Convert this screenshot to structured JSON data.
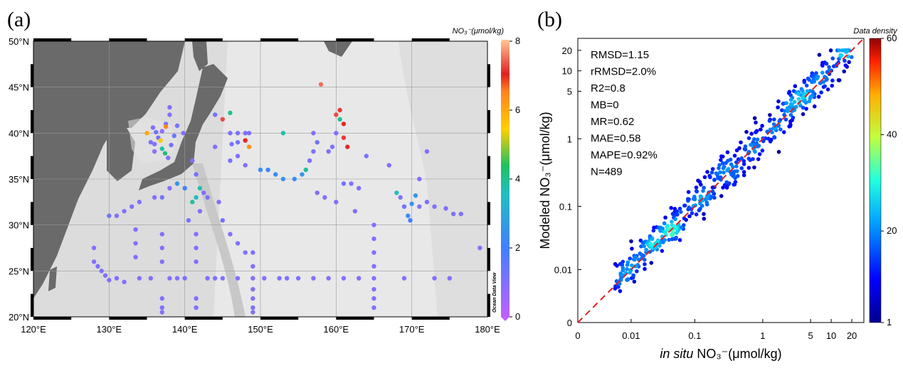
{
  "chart_data": [
    {
      "panel": "(a)",
      "type": "scatter",
      "xlabel": "",
      "ylabel": "",
      "xlim": [
        120,
        180
      ],
      "ylim": [
        20,
        50
      ],
      "x_ticks": [
        120,
        130,
        140,
        150,
        160,
        170,
        180
      ],
      "x_tick_labels": [
        "120°E",
        "130°E",
        "140°E",
        "150°E",
        "160°E",
        "170°E",
        "180°E"
      ],
      "y_ticks": [
        20,
        25,
        30,
        35,
        40,
        45,
        50
      ],
      "y_tick_labels": [
        "20°N",
        "25°N",
        "30°N",
        "35°N",
        "40°N",
        "45°N",
        "50°N"
      ],
      "grid": true,
      "colorbar": {
        "title": "NO₃⁻(μmol/kg)",
        "min": 0,
        "max": 8,
        "ticks": [
          0,
          2,
          4,
          6,
          8
        ],
        "tick_labels": [
          "0",
          "2",
          "4",
          "6",
          "8"
        ]
      },
      "watermark": "Ocean Data View",
      "colors": {
        "low": "#c060ff",
        "mid_low": "#4080ff",
        "mid": "#20c060",
        "mid_high": "#ffc000",
        "high": "#e02020",
        "top": "#ffc090"
      },
      "points": [
        {
          "lon": 136.0,
          "lat": 38.8,
          "v": 1.0
        },
        {
          "lon": 136.5,
          "lat": 39.5,
          "v": 1.2
        },
        {
          "lon": 137.0,
          "lat": 40.2,
          "v": 0.8
        },
        {
          "lon": 137.5,
          "lat": 41.0,
          "v": 1.1
        },
        {
          "lon": 138.0,
          "lat": 42.0,
          "v": 0.9
        },
        {
          "lon": 138.0,
          "lat": 42.8,
          "v": 1.0
        },
        {
          "lon": 137.5,
          "lat": 40.7,
          "v": 6.5
        },
        {
          "lon": 136.2,
          "lat": 40.1,
          "v": 1.3
        },
        {
          "lon": 135.0,
          "lat": 40.0,
          "v": 6.0
        },
        {
          "lon": 135.5,
          "lat": 39.0,
          "v": 1.0
        },
        {
          "lon": 136.0,
          "lat": 38.0,
          "v": 0.7
        },
        {
          "lon": 137.0,
          "lat": 38.3,
          "v": 3.8
        },
        {
          "lon": 137.4,
          "lat": 37.8,
          "v": 4.2
        },
        {
          "lon": 137.8,
          "lat": 37.3,
          "v": 1.0
        },
        {
          "lon": 138.6,
          "lat": 39.7,
          "v": 1.3
        },
        {
          "lon": 139.0,
          "lat": 40.8,
          "v": 1.1
        },
        {
          "lon": 139.8,
          "lat": 40.0,
          "v": 0.9
        },
        {
          "lon": 136.8,
          "lat": 39.2,
          "v": 5.5
        },
        {
          "lon": 138.2,
          "lat": 38.7,
          "v": 1.2
        },
        {
          "lon": 135.8,
          "lat": 40.6,
          "v": 1.0
        },
        {
          "lon": 144.0,
          "lat": 42.0,
          "v": 1.2
        },
        {
          "lon": 146.0,
          "lat": 42.2,
          "v": 4.0
        },
        {
          "lon": 145.0,
          "lat": 41.5,
          "v": 7.3
        },
        {
          "lon": 146.0,
          "lat": 40.0,
          "v": 1.0
        },
        {
          "lon": 147.0,
          "lat": 40.0,
          "v": 1.1
        },
        {
          "lon": 148.0,
          "lat": 40.0,
          "v": 1.0
        },
        {
          "lon": 148.5,
          "lat": 40.0,
          "v": 1.0
        },
        {
          "lon": 148.0,
          "lat": 39.2,
          "v": 7.0
        },
        {
          "lon": 148.5,
          "lat": 38.5,
          "v": 6.3
        },
        {
          "lon": 147.0,
          "lat": 39.0,
          "v": 1.2
        },
        {
          "lon": 147.0,
          "lat": 37.5,
          "v": 1.0
        },
        {
          "lon": 148.0,
          "lat": 36.5,
          "v": 1.0
        },
        {
          "lon": 146.0,
          "lat": 37.0,
          "v": 1.1
        },
        {
          "lon": 144.0,
          "lat": 38.5,
          "v": 1.0
        },
        {
          "lon": 146.2,
          "lat": 38.8,
          "v": 1.1
        },
        {
          "lon": 153.0,
          "lat": 40.0,
          "v": 3.8
        },
        {
          "lon": 157.0,
          "lat": 40.0,
          "v": 1.0
        },
        {
          "lon": 157.5,
          "lat": 39.0,
          "v": 1.2
        },
        {
          "lon": 157.0,
          "lat": 38.0,
          "v": 1.1
        },
        {
          "lon": 156.5,
          "lat": 37.0,
          "v": 1.0
        },
        {
          "lon": 156.0,
          "lat": 36.0,
          "v": 3.9
        },
        {
          "lon": 155.5,
          "lat": 35.5,
          "v": 2.5
        },
        {
          "lon": 154.5,
          "lat": 35.0,
          "v": 2.3
        },
        {
          "lon": 153.0,
          "lat": 35.0,
          "v": 2.5
        },
        {
          "lon": 152.0,
          "lat": 35.5,
          "v": 2.3
        },
        {
          "lon": 151.0,
          "lat": 36.0,
          "v": 2.2
        },
        {
          "lon": 150.0,
          "lat": 36.0,
          "v": 2.4
        },
        {
          "lon": 160.0,
          "lat": 40.0,
          "v": 1.0
        },
        {
          "lon": 160.5,
          "lat": 41.5,
          "v": 4.0
        },
        {
          "lon": 160.0,
          "lat": 42.0,
          "v": 7.3
        },
        {
          "lon": 160.5,
          "lat": 42.5,
          "v": 7.2
        },
        {
          "lon": 161.0,
          "lat": 41.0,
          "v": 7.0
        },
        {
          "lon": 161.0,
          "lat": 39.5,
          "v": 7.2
        },
        {
          "lon": 161.5,
          "lat": 38.5,
          "v": 7.1
        },
        {
          "lon": 159.5,
          "lat": 38.5,
          "v": 1.0
        },
        {
          "lon": 158.0,
          "lat": 45.3,
          "v": 7.5
        },
        {
          "lon": 159.0,
          "lat": 38.0,
          "v": 1.0
        },
        {
          "lon": 164.0,
          "lat": 37.5,
          "v": 1.1
        },
        {
          "lon": 167.0,
          "lat": 36.5,
          "v": 1.0
        },
        {
          "lon": 172.0,
          "lat": 38.0,
          "v": 1.0
        },
        {
          "lon": 171.0,
          "lat": 35.0,
          "v": 1.0
        },
        {
          "lon": 161.0,
          "lat": 34.5,
          "v": 1.2
        },
        {
          "lon": 162.0,
          "lat": 34.5,
          "v": 1.1
        },
        {
          "lon": 163.0,
          "lat": 34.0,
          "v": 1.0
        },
        {
          "lon": 141.0,
          "lat": 37.0,
          "v": 1.0
        },
        {
          "lon": 141.5,
          "lat": 35.5,
          "v": 1.2
        },
        {
          "lon": 142.0,
          "lat": 34.0,
          "v": 3.8
        },
        {
          "lon": 141.5,
          "lat": 33.0,
          "v": 3.5
        },
        {
          "lon": 142.5,
          "lat": 33.5,
          "v": 1.0
        },
        {
          "lon": 143.0,
          "lat": 33.0,
          "v": 1.1
        },
        {
          "lon": 144.5,
          "lat": 32.5,
          "v": 1.0
        },
        {
          "lon": 145.0,
          "lat": 30.5,
          "v": 1.2
        },
        {
          "lon": 146.0,
          "lat": 29.0,
          "v": 1.0
        },
        {
          "lon": 147.0,
          "lat": 28.0,
          "v": 1.0
        },
        {
          "lon": 148.0,
          "lat": 27.0,
          "v": 1.0
        },
        {
          "lon": 142.0,
          "lat": 31.5,
          "v": 1.0
        },
        {
          "lon": 140.5,
          "lat": 30.5,
          "v": 1.1
        },
        {
          "lon": 138.0,
          "lat": 34.0,
          "v": 1.0
        },
        {
          "lon": 137.0,
          "lat": 33.0,
          "v": 1.2
        },
        {
          "lon": 136.0,
          "lat": 33.0,
          "v": 1.0
        },
        {
          "lon": 134.0,
          "lat": 32.5,
          "v": 1.0
        },
        {
          "lon": 133.0,
          "lat": 32.0,
          "v": 1.1
        },
        {
          "lon": 132.0,
          "lat": 31.5,
          "v": 1.0
        },
        {
          "lon": 131.0,
          "lat": 31.0,
          "v": 1.0
        },
        {
          "lon": 130.0,
          "lat": 31.0,
          "v": 1.2
        },
        {
          "lon": 139.0,
          "lat": 34.5,
          "v": 2.5
        },
        {
          "lon": 140.0,
          "lat": 34.0,
          "v": 2.0
        },
        {
          "lon": 141.0,
          "lat": 32.5,
          "v": 3.9
        },
        {
          "lon": 137.0,
          "lat": 29.0,
          "v": 1.0
        },
        {
          "lon": 137.0,
          "lat": 27.5,
          "v": 1.0
        },
        {
          "lon": 137.0,
          "lat": 26.0,
          "v": 1.0
        },
        {
          "lon": 137.0,
          "lat": 22.0,
          "v": 1.0
        },
        {
          "lon": 137.0,
          "lat": 21.0,
          "v": 1.0
        },
        {
          "lon": 137.0,
          "lat": 20.5,
          "v": 1.0
        },
        {
          "lon": 133.5,
          "lat": 29.5,
          "v": 1.0
        },
        {
          "lon": 133.5,
          "lat": 28.0,
          "v": 1.0
        },
        {
          "lon": 133.5,
          "lat": 26.5,
          "v": 1.0
        },
        {
          "lon": 141.5,
          "lat": 29.0,
          "v": 1.0
        },
        {
          "lon": 141.5,
          "lat": 27.5,
          "v": 1.0
        },
        {
          "lon": 141.5,
          "lat": 26.0,
          "v": 1.0
        },
        {
          "lon": 141.5,
          "lat": 22.0,
          "v": 1.0
        },
        {
          "lon": 141.5,
          "lat": 21.0,
          "v": 1.0
        },
        {
          "lon": 128.0,
          "lat": 26.0,
          "v": 1.0
        },
        {
          "lon": 128.5,
          "lat": 25.5,
          "v": 1.0
        },
        {
          "lon": 129.0,
          "lat": 25.0,
          "v": 1.0
        },
        {
          "lon": 129.5,
          "lat": 24.5,
          "v": 1.0
        },
        {
          "lon": 130.0,
          "lat": 24.0,
          "v": 1.0
        },
        {
          "lon": 128.0,
          "lat": 27.5,
          "v": 1.0
        },
        {
          "lon": 131.0,
          "lat": 24.2,
          "v": 1.0
        },
        {
          "lon": 132.0,
          "lat": 23.8,
          "v": 1.0
        },
        {
          "lon": 134.0,
          "lat": 24.2,
          "v": 1.0
        },
        {
          "lon": 135.5,
          "lat": 24.2,
          "v": 1.0
        },
        {
          "lon": 138.0,
          "lat": 24.2,
          "v": 1.0
        },
        {
          "lon": 139.0,
          "lat": 24.2,
          "v": 1.0
        },
        {
          "lon": 140.0,
          "lat": 24.2,
          "v": 1.0
        },
        {
          "lon": 143.0,
          "lat": 24.2,
          "v": 1.0
        },
        {
          "lon": 144.0,
          "lat": 24.2,
          "v": 1.0
        },
        {
          "lon": 145.0,
          "lat": 24.2,
          "v": 1.0
        },
        {
          "lon": 147.0,
          "lat": 24.2,
          "v": 1.0
        },
        {
          "lon": 149.0,
          "lat": 24.2,
          "v": 1.0
        },
        {
          "lon": 150.5,
          "lat": 24.2,
          "v": 1.0
        },
        {
          "lon": 152.5,
          "lat": 24.2,
          "v": 1.0
        },
        {
          "lon": 153.5,
          "lat": 24.2,
          "v": 1.0
        },
        {
          "lon": 155.0,
          "lat": 24.2,
          "v": 1.0
        },
        {
          "lon": 157.0,
          "lat": 24.2,
          "v": 1.0
        },
        {
          "lon": 159.0,
          "lat": 24.2,
          "v": 1.0
        },
        {
          "lon": 161.0,
          "lat": 24.2,
          "v": 1.0
        },
        {
          "lon": 163.0,
          "lat": 24.2,
          "v": 1.0
        },
        {
          "lon": 165.0,
          "lat": 24.2,
          "v": 1.0
        },
        {
          "lon": 169.0,
          "lat": 24.2,
          "v": 1.0
        },
        {
          "lon": 173.0,
          "lat": 24.2,
          "v": 1.0
        },
        {
          "lon": 175.0,
          "lat": 24.2,
          "v": 1.0
        },
        {
          "lon": 149.0,
          "lat": 27.0,
          "v": 1.0
        },
        {
          "lon": 149.0,
          "lat": 25.5,
          "v": 1.0
        },
        {
          "lon": 149.0,
          "lat": 23.0,
          "v": 1.0
        },
        {
          "lon": 149.0,
          "lat": 22.0,
          "v": 1.0
        },
        {
          "lon": 149.0,
          "lat": 21.0,
          "v": 1.0
        },
        {
          "lon": 149.0,
          "lat": 20.5,
          "v": 1.0
        },
        {
          "lon": 165.0,
          "lat": 30.0,
          "v": 1.0
        },
        {
          "lon": 165.0,
          "lat": 28.5,
          "v": 1.0
        },
        {
          "lon": 165.0,
          "lat": 27.0,
          "v": 1.0
        },
        {
          "lon": 165.0,
          "lat": 25.5,
          "v": 1.0
        },
        {
          "lon": 165.0,
          "lat": 23.0,
          "v": 1.0
        },
        {
          "lon": 165.0,
          "lat": 22.0,
          "v": 1.0
        },
        {
          "lon": 165.0,
          "lat": 21.0,
          "v": 1.0
        },
        {
          "lon": 162.5,
          "lat": 31.5,
          "v": 1.0
        },
        {
          "lon": 160.0,
          "lat": 32.5,
          "v": 1.0
        },
        {
          "lon": 158.5,
          "lat": 33.0,
          "v": 1.0
        },
        {
          "lon": 157.5,
          "lat": 33.5,
          "v": 1.0
        },
        {
          "lon": 168.0,
          "lat": 33.5,
          "v": 3.5
        },
        {
          "lon": 168.5,
          "lat": 33.0,
          "v": 1.0
        },
        {
          "lon": 169.0,
          "lat": 32.0,
          "v": 1.2
        },
        {
          "lon": 169.5,
          "lat": 31.0,
          "v": 2.3
        },
        {
          "lon": 169.8,
          "lat": 30.5,
          "v": 2.0
        },
        {
          "lon": 170.0,
          "lat": 32.3,
          "v": 2.5
        },
        {
          "lon": 171.0,
          "lat": 32.0,
          "v": 1.0
        },
        {
          "lon": 172.0,
          "lat": 32.5,
          "v": 1.0
        },
        {
          "lon": 173.0,
          "lat": 32.0,
          "v": 1.0
        },
        {
          "lon": 174.5,
          "lat": 31.8,
          "v": 1.0
        },
        {
          "lon": 175.5,
          "lat": 31.2,
          "v": 1.0
        },
        {
          "lon": 176.5,
          "lat": 31.2,
          "v": 1.0
        },
        {
          "lon": 179.0,
          "lat": 27.5,
          "v": 1.0
        },
        {
          "lon": 170.5,
          "lat": 33.2,
          "v": 2.6
        }
      ]
    },
    {
      "panel": "(b)",
      "type": "scatter",
      "xlabel_prefix": "in situ",
      "xlabel": "NO₃⁻(μmol/kg)",
      "ylabel": "Modeled NO₃⁻(μmol/kg)",
      "axis_scale": "symlog",
      "xlim": [
        0,
        30
      ],
      "ylim": [
        0,
        30
      ],
      "x_ticks": [
        0,
        0.01,
        0.1,
        1,
        5,
        10,
        20
      ],
      "x_tick_labels": [
        "0",
        "0.01",
        "0.1",
        "1",
        "5",
        "10",
        "20"
      ],
      "y_ticks": [
        0,
        0.01,
        0.1,
        1,
        5,
        10,
        20
      ],
      "y_tick_labels": [
        "0",
        "0.01",
        "0.1",
        "1",
        "5",
        "10",
        "20"
      ],
      "reference_line": "1:1",
      "stats": [
        "RMSD=1.15",
        "rRMSD=2.0%",
        "R2=0.8",
        "MB=0",
        "MR=0.62",
        "MAE=0.58",
        "MAPE=0.92%",
        "N=489"
      ],
      "colorbar": {
        "title": "Data density",
        "min": 1,
        "max": 60,
        "ticks": [
          1,
          20,
          40,
          60
        ],
        "tick_labels": [
          "1",
          "20",
          "40",
          "60"
        ]
      },
      "colors": {
        "line": "#e02020"
      },
      "n_points": 489
    }
  ]
}
